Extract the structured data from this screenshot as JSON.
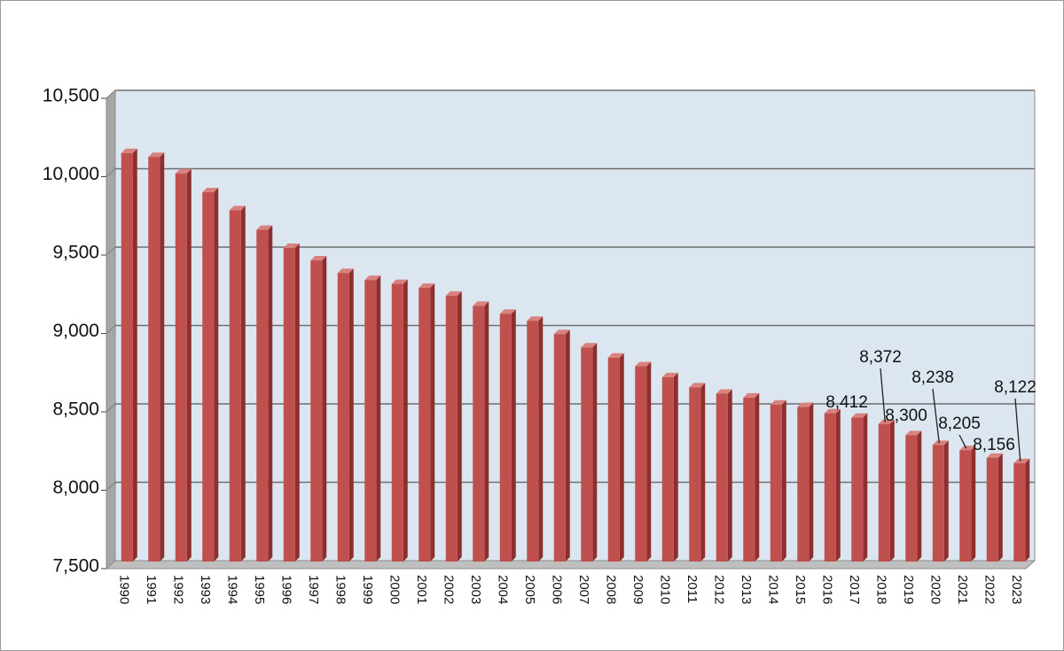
{
  "chart_data": {
    "type": "bar",
    "title": "",
    "xlabel": "",
    "ylabel": "",
    "ylim": [
      7500,
      10500
    ],
    "y_ticks": [
      7500,
      8000,
      8500,
      9000,
      9500,
      10000,
      10500
    ],
    "y_tick_labels": [
      "7,500",
      "8,000",
      "8,500",
      "9,000",
      "9,500",
      "10,000",
      "10,500"
    ],
    "grid": true,
    "legend": "none",
    "style": "3d-column",
    "colors": {
      "bar_front": "#c0504d",
      "bar_side": "#8e2f2d",
      "bar_top": "#d9817f",
      "plot_back": "#dce6f1",
      "gridline": "#6f6f6f",
      "floor": "#bfbfbf"
    },
    "categories": [
      "1990",
      "1991",
      "1992",
      "1993",
      "1994",
      "1995",
      "1996",
      "1997",
      "1998",
      "1999",
      "2000",
      "2001",
      "2002",
      "2003",
      "2004",
      "2005",
      "2006",
      "2007",
      "2008",
      "2009",
      "2010",
      "2011",
      "2012",
      "2013",
      "2014",
      "2015",
      "2016",
      "2017",
      "2018",
      "2019",
      "2020",
      "2021",
      "2022",
      "2023"
    ],
    "values": [
      10100,
      10075,
      9970,
      9850,
      9735,
      9610,
      9495,
      9415,
      9335,
      9290,
      9265,
      9240,
      9190,
      9125,
      9075,
      9030,
      8945,
      8860,
      8795,
      8740,
      8670,
      8605,
      8565,
      8540,
      8495,
      8480,
      8440,
      8412,
      8372,
      8300,
      8238,
      8205,
      8156,
      8122
    ],
    "data_labels": [
      {
        "index": 27,
        "text": "8,412"
      },
      {
        "index": 28,
        "text": "8,372"
      },
      {
        "index": 29,
        "text": "8,300"
      },
      {
        "index": 30,
        "text": "8,238"
      },
      {
        "index": 31,
        "text": "8,205"
      },
      {
        "index": 32,
        "text": "8,156"
      },
      {
        "index": 33,
        "text": "8,122"
      }
    ]
  }
}
